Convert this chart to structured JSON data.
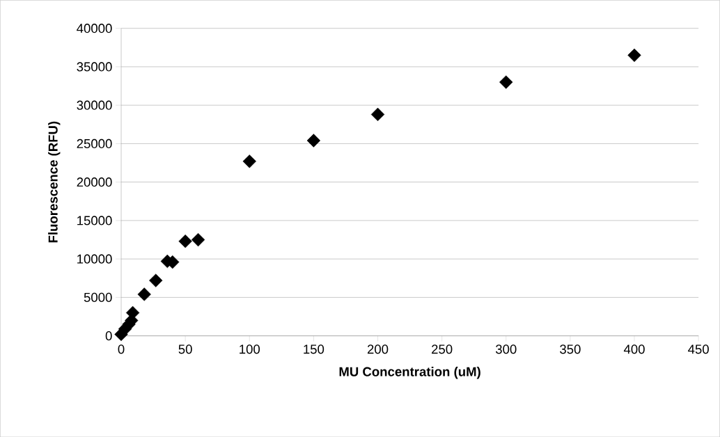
{
  "chart_data": {
    "type": "scatter",
    "xlabel": "MU Concentration (uM)",
    "ylabel": "Fluorescence (RFU)",
    "x": [
      0,
      3,
      6,
      8,
      9,
      18,
      27,
      36,
      40,
      50,
      60,
      100,
      150,
      200,
      300,
      400
    ],
    "values": [
      200,
      900,
      1500,
      2000,
      3000,
      5400,
      7200,
      9700,
      9600,
      12300,
      12500,
      22700,
      25400,
      28800,
      33000,
      36500
    ],
    "color": "#000000",
    "marker": "diamond",
    "xlim": [
      0,
      450
    ],
    "xticks": [
      0,
      50,
      100,
      150,
      200,
      250,
      300,
      350,
      400,
      450
    ],
    "ylim": [
      0,
      40000
    ],
    "yticks": [
      0,
      5000,
      10000,
      15000,
      20000,
      25000,
      30000,
      35000,
      40000
    ],
    "grid": "y"
  }
}
